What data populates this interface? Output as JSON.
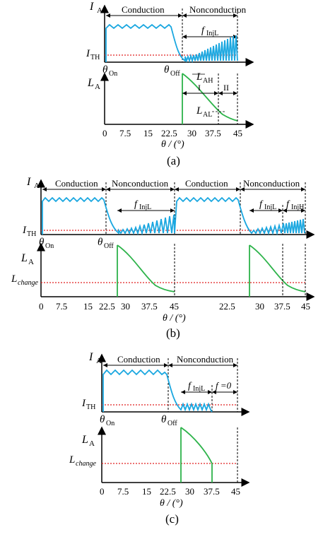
{
  "colors": {
    "current": "#1aa7e0",
    "inductance": "#2db34a",
    "threshold": "#e02020",
    "axis": "#000000"
  },
  "panels": [
    {
      "id": "a",
      "caption": "(a)",
      "current_axis_label": "I",
      "current_axis_sub": "A",
      "threshold_label": "I",
      "threshold_sub": "TH",
      "induct_axis_label": "L",
      "induct_axis_sub": "A",
      "theta_on": "θ",
      "theta_on_sub": "On",
      "theta_off": "θ",
      "theta_off_sub": "Off",
      "conduction": "Conduction",
      "nonconduction": "Nonconduction",
      "finj_label": "f",
      "finj_sub": "InjL",
      "lah": "L",
      "lah_sub": "AH",
      "lal": "L",
      "lal_sub": "AL",
      "region1": "I",
      "region2": "II",
      "xticks": [
        "0",
        "7.5",
        "15",
        "22.5",
        "30",
        "37.5",
        "45"
      ],
      "xlabel": "θ / (°)"
    },
    {
      "id": "b",
      "caption": "(b)",
      "current_axis_label": "I",
      "current_axis_sub": "A",
      "threshold_label": "I",
      "threshold_sub": "TH",
      "induct_axis_label": "L",
      "induct_axis_sub": "A",
      "lchange": "L",
      "lchange_sub": "change",
      "theta_on": "θ",
      "theta_on_sub": "On",
      "theta_off": "θ",
      "theta_off_sub": "Off",
      "conduction": "Conduction",
      "nonconduction": "Nonconduction",
      "conduction2": "Conduction",
      "nonconduction2": "Nonconduction",
      "finj_label": "f",
      "finj_sub": "InjL",
      "finj2_label": "f",
      "finj2_sub": "InjL",
      "finjh_label": "f",
      "finjh_sub": "InjH",
      "xticks": [
        "0",
        "7.5",
        "15",
        "22.5",
        "30",
        "37.5",
        "45",
        "22.5",
        "30",
        "37.5",
        "45"
      ],
      "xlabel": "θ / (°)"
    },
    {
      "id": "c",
      "caption": "(c)",
      "current_axis_label": "I",
      "current_axis_sub": "A",
      "threshold_label": "I",
      "threshold_sub": "TH",
      "induct_axis_label": "L",
      "induct_axis_sub": "A",
      "lchange": "L",
      "lchange_sub": "change",
      "theta_on": "θ",
      "theta_on_sub": "On",
      "theta_off": "θ",
      "theta_off_sub": "Off",
      "conduction": "Conduction",
      "nonconduction": "Nonconduction",
      "finj_label": "f",
      "finj_sub": "InjL",
      "fzero": "f =0",
      "xticks": [
        "0",
        "7.5",
        "15",
        "22.5",
        "30",
        "37.5",
        "45"
      ],
      "xlabel": "θ / (°)"
    }
  ]
}
